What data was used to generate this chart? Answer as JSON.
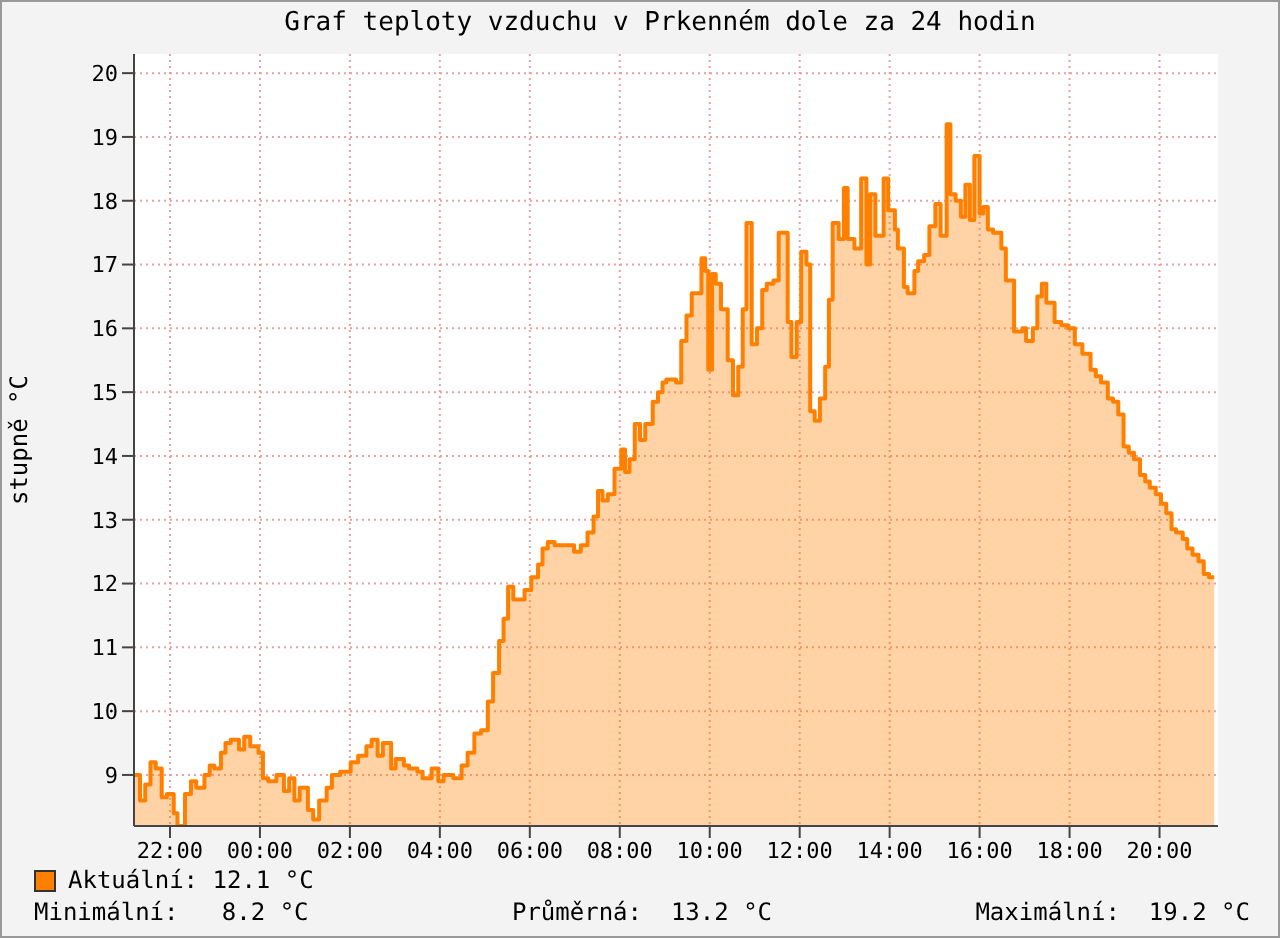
{
  "chart_data": {
    "type": "area",
    "title": "Graf teploty vzduchu v Prkenném dole za 24 hodin",
    "ylabel": "stupně °C",
    "x": [
      "--01-01T21:13",
      "--01-01T21:20",
      "--01-01T21:27",
      "--01-01T21:34",
      "--01-01T21:41",
      "--01-01T21:49",
      "--01-01T21:56",
      "--01-01T22:05",
      "--01-01T22:10",
      "--01-01T22:20",
      "--01-01T22:28",
      "--01-01T22:35",
      "--01-01T22:46",
      "--01-01T22:53",
      "--01-01T22:59",
      "--01-01T23:08",
      "--01-01T23:14",
      "--01-01T23:21",
      "--01-01T23:32",
      "--01-01T23:39",
      "--01-01T23:47",
      "--01-01T23:58",
      "--01-02T00:04",
      "--01-02T00:11",
      "--01-02T00:22",
      "--01-02T00:32",
      "--01-02T00:39",
      "--01-02T00:46",
      "--01-02T00:53",
      "--01-02T01:04",
      "--01-02T01:11",
      "--01-02T01:19",
      "--01-02T01:29",
      "--01-02T01:36",
      "--01-02T01:47",
      "--01-02T02:01",
      "--01-02T02:11",
      "--01-02T02:22",
      "--01-02T02:29",
      "--01-02T02:37",
      "--01-02T02:44",
      "--01-02T02:55",
      "--01-02T03:01",
      "--01-02T03:12",
      "--01-02T03:19",
      "--01-02T03:30",
      "--01-02T03:37",
      "--01-02T03:49",
      "--01-02T03:58",
      "--01-02T04:05",
      "--01-02T04:18",
      "--01-02T04:29",
      "--01-02T04:37",
      "--01-02T04:46",
      "--01-02T04:55",
      "--01-02T05:04",
      "--01-02T05:11",
      "--01-02T05:19",
      "--01-02T05:25",
      "--01-02T05:31",
      "--01-02T05:38",
      "--01-02T05:53",
      "--01-02T06:02",
      "--01-02T06:11",
      "--01-02T06:17",
      "--01-02T06:24",
      "--01-02T06:33",
      "--01-02T06:59",
      "--01-02T07:08",
      "--01-02T07:17",
      "--01-02T07:25",
      "--01-02T07:31",
      "--01-02T07:37",
      "--01-02T07:44",
      "--01-02T07:53",
      "--01-02T08:02",
      "--01-02T08:07",
      "--01-02T08:13",
      "--01-02T08:20",
      "--01-02T08:27",
      "--01-02T08:34",
      "--01-02T08:44",
      "--01-02T08:51",
      "--01-02T08:57",
      "--01-02T09:02",
      "--01-02T09:15",
      "--01-02T09:22",
      "--01-02T09:29",
      "--01-02T09:36",
      "--01-02T09:49",
      "--01-02T09:54",
      "--01-02T09:58",
      "--01-02T10:03",
      "--01-02T10:08",
      "--01-02T10:15",
      "--01-02T10:24",
      "--01-02T10:31",
      "--01-02T10:38",
      "--01-02T10:44",
      "--01-02T10:49",
      "--01-02T10:56",
      "--01-02T11:03",
      "--01-02T11:10",
      "--01-02T11:16",
      "--01-02T11:25",
      "--01-02T11:32",
      "--01-02T11:44",
      "--01-02T11:49",
      "--01-02T11:56",
      "--01-02T12:02",
      "--01-02T12:09",
      "--01-02T12:14",
      "--01-02T12:20",
      "--01-02T12:27",
      "--01-02T12:34",
      "--01-02T12:39",
      "--01-02T12:44",
      "--01-02T12:52",
      "--01-02T12:59",
      "--01-02T13:04",
      "--01-02T13:13",
      "--01-02T13:22",
      "--01-02T13:29",
      "--01-02T13:34",
      "--01-02T13:41",
      "--01-02T13:52",
      "--01-02T13:58",
      "--01-02T14:07",
      "--01-02T14:11",
      "--01-02T14:19",
      "--01-02T14:24",
      "--01-02T14:33",
      "--01-02T14:38",
      "--01-02T14:46",
      "--01-02T14:53",
      "--01-02T15:01",
      "--01-02T15:08",
      "--01-02T15:16",
      "--01-02T15:21",
      "--01-02T15:28",
      "--01-02T15:35",
      "--01-02T15:41",
      "--01-02T15:47",
      "--01-02T15:53",
      "--01-02T16:00",
      "--01-02T16:05",
      "--01-02T16:11",
      "--01-02T16:18",
      "--01-02T16:29",
      "--01-02T16:35",
      "--01-02T16:46",
      "--01-02T16:57",
      "--01-02T17:02",
      "--01-02T17:11",
      "--01-02T17:17",
      "--01-02T17:23",
      "--01-02T17:29",
      "--01-02T17:40",
      "--01-02T17:49",
      "--01-02T17:58",
      "--01-02T18:07",
      "--01-02T18:17",
      "--01-02T18:28",
      "--01-02T18:35",
      "--01-02T18:42",
      "--01-02T18:51",
      "--01-02T18:58",
      "--01-02T19:05",
      "--01-02T19:12",
      "--01-02T19:19",
      "--01-02T19:26",
      "--01-02T19:34",
      "--01-02T19:41",
      "--01-02T19:47",
      "--01-02T19:55",
      "--01-02T20:02",
      "--01-02T20:09",
      "--01-02T20:16",
      "--01-02T20:22",
      "--01-02T20:31",
      "--01-02T20:37",
      "--01-02T20:44",
      "--01-02T20:52",
      "--01-02T20:59",
      "--01-02T21:06",
      "--01-02T21:13"
    ],
    "series": [
      {
        "name": "Aktuální: 12.1 °C",
        "color": "#ff8000",
        "values": [
          9.0,
          8.6,
          8.85,
          9.2,
          9.1,
          8.65,
          8.7,
          8.4,
          8.2,
          8.7,
          8.9,
          8.8,
          9.0,
          9.15,
          9.1,
          9.35,
          9.5,
          9.55,
          9.4,
          9.6,
          9.45,
          9.35,
          8.95,
          8.9,
          9.0,
          8.75,
          8.95,
          8.6,
          8.8,
          8.45,
          8.3,
          8.6,
          8.8,
          9.0,
          9.05,
          9.2,
          9.3,
          9.45,
          9.55,
          9.3,
          9.5,
          9.1,
          9.25,
          9.15,
          9.1,
          9.05,
          8.95,
          9.1,
          8.9,
          9.0,
          8.95,
          9.15,
          9.35,
          9.65,
          9.7,
          10.15,
          10.6,
          11.1,
          11.45,
          11.95,
          11.75,
          11.9,
          12.1,
          12.3,
          12.55,
          12.65,
          12.6,
          12.5,
          12.6,
          12.8,
          13.05,
          13.45,
          13.3,
          13.4,
          13.8,
          14.1,
          13.75,
          13.95,
          14.5,
          14.25,
          14.5,
          14.85,
          15.0,
          15.15,
          15.2,
          15.15,
          15.8,
          16.2,
          16.55,
          17.1,
          16.9,
          15.35,
          16.85,
          16.7,
          16.3,
          15.5,
          14.95,
          15.4,
          16.3,
          17.65,
          15.75,
          16.0,
          16.6,
          16.7,
          16.75,
          17.5,
          16.1,
          15.55,
          16.1,
          17.2,
          17.0,
          14.7,
          14.55,
          14.9,
          15.4,
          16.45,
          17.65,
          17.4,
          18.2,
          17.4,
          17.25,
          18.35,
          17.0,
          18.1,
          17.45,
          18.35,
          17.85,
          17.55,
          17.25,
          16.65,
          16.55,
          16.9,
          17.05,
          17.15,
          17.6,
          17.95,
          17.45,
          19.2,
          18.1,
          18.0,
          17.75,
          18.25,
          17.7,
          18.7,
          17.8,
          17.9,
          17.55,
          17.5,
          17.25,
          16.75,
          15.95,
          16.0,
          15.8,
          16.0,
          16.5,
          16.7,
          16.4,
          16.1,
          16.05,
          16.0,
          15.75,
          15.6,
          15.35,
          15.25,
          15.15,
          14.9,
          14.85,
          14.65,
          14.15,
          14.05,
          13.95,
          13.7,
          13.6,
          13.5,
          13.4,
          13.25,
          13.1,
          12.85,
          12.8,
          12.7,
          12.55,
          12.45,
          12.35,
          12.15,
          12.1,
          12.1
        ]
      }
    ],
    "xlim": [
      "--01-01T21:12",
      "--01-02T21:18"
    ],
    "xticks": [
      {
        "value": "--01-01T22:00",
        "label": "22:00"
      },
      {
        "value": "--01-02T00:00",
        "label": "00:00"
      },
      {
        "value": "--01-02T02:00",
        "label": "02:00"
      },
      {
        "value": "--01-02T04:00",
        "label": "04:00"
      },
      {
        "value": "--01-02T06:00",
        "label": "06:00"
      },
      {
        "value": "--01-02T08:00",
        "label": "08:00"
      },
      {
        "value": "--01-02T10:00",
        "label": "10:00"
      },
      {
        "value": "--01-02T12:00",
        "label": "12:00"
      },
      {
        "value": "--01-02T14:00",
        "label": "14:00"
      },
      {
        "value": "--01-02T16:00",
        "label": "16:00"
      },
      {
        "value": "--01-02T18:00",
        "label": "18:00"
      },
      {
        "value": "--01-02T20:00",
        "label": "20:00"
      }
    ],
    "ylim": [
      8.2,
      20.3
    ],
    "yticks": [
      9,
      10,
      11,
      12,
      13,
      14,
      15,
      16,
      17,
      18,
      19,
      20
    ],
    "grid": true,
    "legend": "bottom left",
    "line_style": "solid",
    "annotations": [
      "Minimální:   8.2 °C",
      "Průměrná:  13.2 °C",
      "Maximální:  19.2 °C"
    ]
  }
}
